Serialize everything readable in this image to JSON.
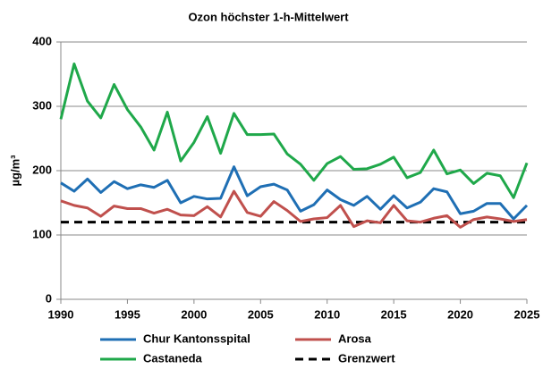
{
  "chart_data": {
    "type": "line",
    "title": "Ozon höchster 1-h-Mittelwert",
    "y_label": "µg/m³",
    "x": [
      1990,
      1991,
      1992,
      1993,
      1994,
      1995,
      1996,
      1997,
      1998,
      1999,
      2000,
      2001,
      2002,
      2003,
      2004,
      2005,
      2006,
      2007,
      2008,
      2009,
      2010,
      2011,
      2012,
      2013,
      2014,
      2015,
      2016,
      2017,
      2018,
      2019,
      2020,
      2021,
      2022,
      2023,
      2024,
      2025
    ],
    "series": [
      {
        "name": "Chur Kantonsspital",
        "color": "#1f6fb4",
        "values": [
          181,
          168,
          187,
          166,
          183,
          172,
          178,
          174,
          185,
          150,
          160,
          156,
          157,
          206,
          161,
          175,
          179,
          170,
          137,
          147,
          170,
          155,
          146,
          160,
          140,
          161,
          142,
          151,
          172,
          167,
          133,
          137,
          149,
          149,
          125,
          146
        ]
      },
      {
        "name": "Arosa",
        "color": "#c0504d",
        "values": [
          153,
          146,
          142,
          129,
          145,
          141,
          141,
          134,
          140,
          131,
          130,
          144,
          128,
          168,
          135,
          129,
          152,
          138,
          121,
          125,
          127,
          146,
          113,
          122,
          119,
          146,
          122,
          120,
          126,
          130,
          112,
          124,
          128,
          125,
          121,
          124
        ]
      },
      {
        "name": "Castaneda",
        "color": "#1fa84a",
        "values": [
          280,
          366,
          308,
          282,
          334,
          295,
          268,
          232,
          291,
          215,
          244,
          284,
          227,
          289,
          256,
          256,
          257,
          226,
          210,
          185,
          211,
          222,
          202,
          203,
          210,
          221,
          189,
          197,
          232,
          195,
          201,
          180,
          196,
          192,
          158,
          212
        ]
      }
    ],
    "threshold": {
      "name": "Grenzwert",
      "value": 120,
      "color": "#000000"
    },
    "xlim": [
      1990,
      2025
    ],
    "xticks": [
      1990,
      1995,
      2000,
      2005,
      2010,
      2015,
      2020,
      2025
    ],
    "ylim": [
      0,
      400
    ],
    "yticks": [
      0,
      100,
      200,
      300,
      400
    ],
    "grid": true
  }
}
